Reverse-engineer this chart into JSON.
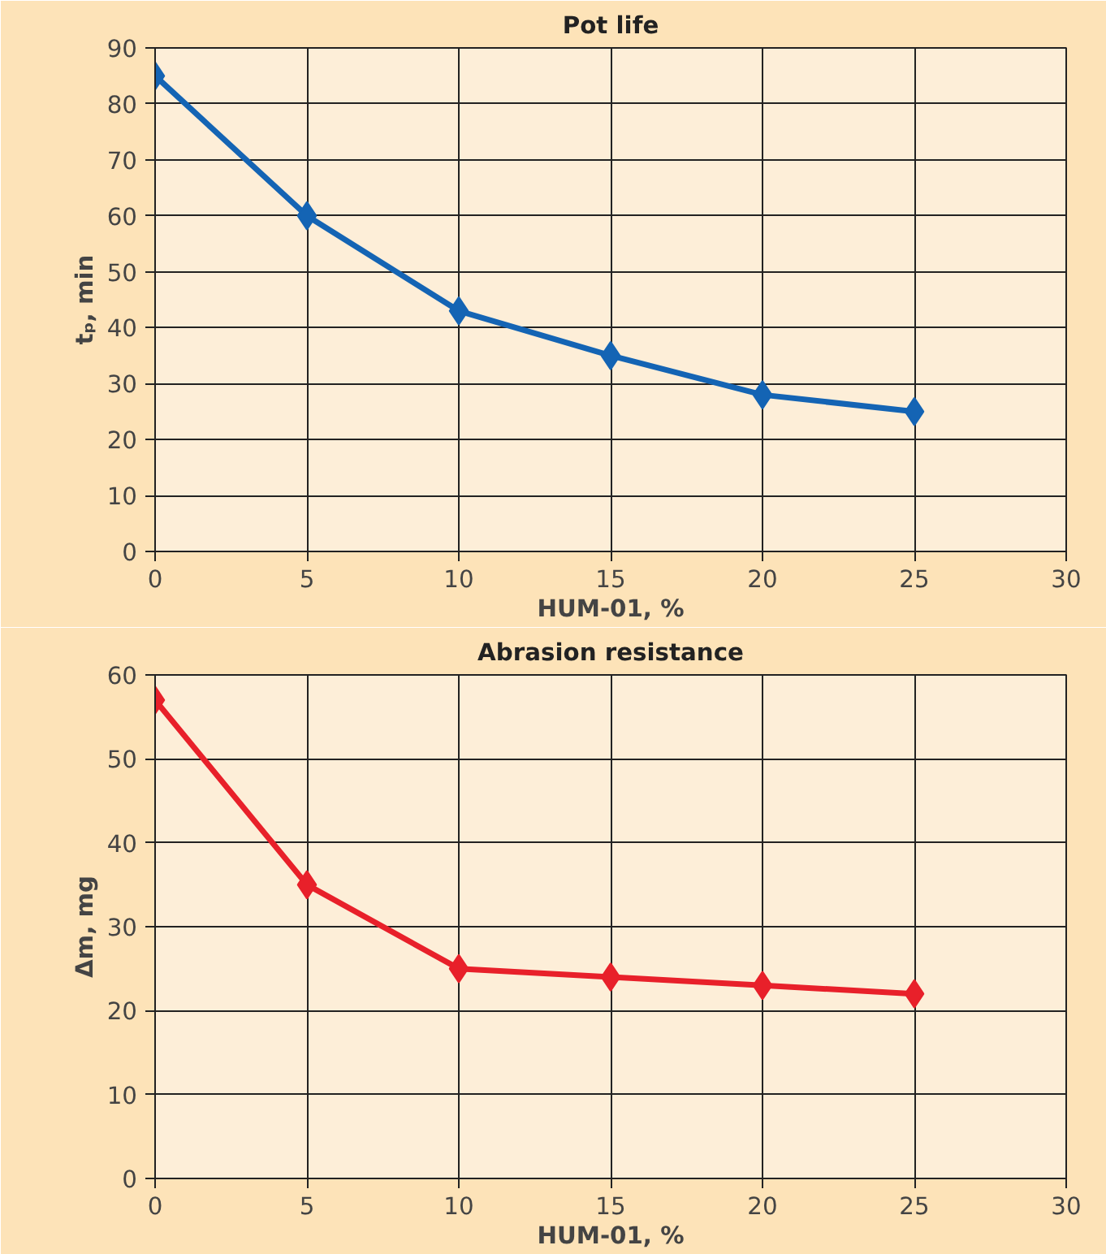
{
  "chart_data": [
    {
      "type": "line",
      "title": "Pot life",
      "xlabel": "HUM-01, %",
      "ylabel": "tₚ, min",
      "x": [
        0,
        5,
        10,
        15,
        20,
        25
      ],
      "series": [
        {
          "color": "#1464b4",
          "values": [
            85,
            60,
            43,
            35,
            28,
            25
          ]
        }
      ],
      "xlim": [
        0,
        30
      ],
      "xticks": [
        0,
        5,
        10,
        15,
        20,
        25,
        30
      ],
      "ylim": [
        0,
        90
      ],
      "yticks": [
        0,
        10,
        20,
        30,
        40,
        50,
        60,
        70,
        80,
        90
      ],
      "grid": true,
      "marker": "diamond",
      "line_style": "solid"
    },
    {
      "type": "line",
      "title": "Abrasion resistance",
      "xlabel": "HUM-01, %",
      "ylabel": "Δm, mg",
      "x": [
        0,
        5,
        10,
        15,
        20,
        25
      ],
      "series": [
        {
          "color": "#e8202a",
          "values": [
            57,
            35,
            25,
            24,
            23,
            22
          ]
        }
      ],
      "xlim": [
        0,
        30
      ],
      "xticks": [
        0,
        5,
        10,
        15,
        20,
        25,
        30
      ],
      "ylim": [
        0,
        60
      ],
      "yticks": [
        0,
        10,
        20,
        30,
        40,
        50,
        60
      ],
      "grid": true,
      "marker": "diamond",
      "line_style": "solid"
    }
  ]
}
